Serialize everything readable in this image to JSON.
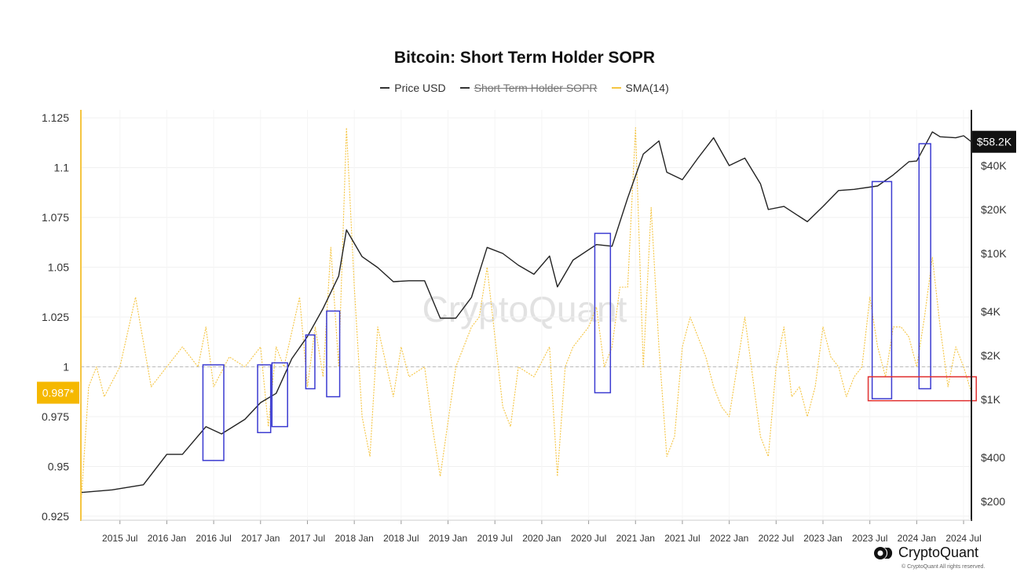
{
  "chart_data": {
    "type": "line",
    "title": "Bitcoin: Short Term Holder SOPR",
    "watermark": "CryptoQuant",
    "legend": [
      {
        "name": "Price USD",
        "color": "#333333",
        "enabled": true
      },
      {
        "name": "Short Term Holder SOPR",
        "color": "#333333",
        "enabled": false
      },
      {
        "name": "SMA(14)",
        "color": "#f5c542",
        "enabled": true
      }
    ],
    "x_ticks": [
      "2015 Jul",
      "2016 Jan",
      "2016 Jul",
      "2017 Jan",
      "2017 Jul",
      "2018 Jan",
      "2018 Jul",
      "2019 Jan",
      "2019 Jul",
      "2020 Jan",
      "2020 Jul",
      "2021 Jan",
      "2021 Jul",
      "2022 Jan",
      "2022 Jul",
      "2023 Jan",
      "2023 Jul",
      "2024 Jan",
      "2024 Jul"
    ],
    "x_range": [
      "2015-02",
      "2024-08"
    ],
    "y_left": {
      "ticks": [
        "1.125",
        "1.1",
        "1.075",
        "1.05",
        "1.025",
        "1",
        "0.975",
        "0.95",
        "0.925"
      ],
      "range": [
        0.923,
        1.129
      ],
      "reference": 1
    },
    "y_right": {
      "ticks": [
        "$40K",
        "$20K",
        "$10K",
        "$4K",
        "$2K",
        "$1K",
        "$400",
        "$200"
      ],
      "scale": "log"
    },
    "current_labels": {
      "sopr": "0.987*",
      "price": "$58.2K"
    },
    "series": [
      {
        "name": "Price USD",
        "axis": "right",
        "x": [
          "2015-02",
          "2015-06",
          "2015-10",
          "2016-01",
          "2016-03",
          "2016-06",
          "2016-08",
          "2016-11",
          "2017-01",
          "2017-03",
          "2017-05",
          "2017-07",
          "2017-09",
          "2017-11",
          "2017-12",
          "2018-02",
          "2018-04",
          "2018-06",
          "2018-08",
          "2018-10",
          "2018-12",
          "2019-02",
          "2019-04",
          "2019-06",
          "2019-08",
          "2019-10",
          "2019-12",
          "2020-02",
          "2020-03",
          "2020-05",
          "2020-08",
          "2020-10",
          "2020-12",
          "2021-01",
          "2021-02",
          "2021-04",
          "2021-05",
          "2021-07",
          "2021-09",
          "2021-11",
          "2022-01",
          "2022-03",
          "2022-05",
          "2022-06",
          "2022-08",
          "2022-11",
          "2023-01",
          "2023-03",
          "2023-05",
          "2023-08",
          "2023-10",
          "2023-12",
          "2024-01",
          "2024-03",
          "2024-04",
          "2024-06",
          "2024-07",
          "2024-08"
        ],
        "values": [
          230,
          240,
          260,
          420,
          420,
          650,
          580,
          730,
          950,
          1100,
          1900,
          2700,
          4200,
          7000,
          14500,
          9500,
          8000,
          6400,
          6500,
          6500,
          3600,
          3600,
          5000,
          11000,
          10000,
          8300,
          7200,
          9600,
          5900,
          9000,
          11500,
          11200,
          24000,
          34000,
          48000,
          59000,
          36000,
          32000,
          45000,
          62000,
          40000,
          45000,
          30000,
          20000,
          21000,
          16500,
          21000,
          27000,
          27500,
          29000,
          34500,
          42500,
          43000,
          68000,
          63000,
          62000,
          64000,
          58200
        ]
      },
      {
        "name": "SMA(14)",
        "axis": "left",
        "x": [
          "2015-02",
          "2015-03",
          "2015-04",
          "2015-05",
          "2015-07",
          "2015-09",
          "2015-11",
          "2016-01",
          "2016-03",
          "2016-05",
          "2016-06",
          "2016-07",
          "2016-09",
          "2016-11",
          "2017-01",
          "2017-02",
          "2017-03",
          "2017-04",
          "2017-06",
          "2017-07",
          "2017-08",
          "2017-09",
          "2017-10",
          "2017-11",
          "2017-12",
          "2018-01",
          "2018-02",
          "2018-03",
          "2018-04",
          "2018-06",
          "2018-07",
          "2018-08",
          "2018-10",
          "2018-11",
          "2018-12",
          "2019-02",
          "2019-04",
          "2019-05",
          "2019-06",
          "2019-08",
          "2019-09",
          "2019-10",
          "2019-12",
          "2020-02",
          "2020-03",
          "2020-04",
          "2020-05",
          "2020-07",
          "2020-08",
          "2020-09",
          "2020-10",
          "2020-11",
          "2020-12",
          "2021-01",
          "2021-02",
          "2021-03",
          "2021-04",
          "2021-05",
          "2021-06",
          "2021-07",
          "2021-08",
          "2021-10",
          "2021-11",
          "2021-12",
          "2022-01",
          "2022-02",
          "2022-03",
          "2022-05",
          "2022-06",
          "2022-07",
          "2022-08",
          "2022-09",
          "2022-10",
          "2022-11",
          "2022-12",
          "2023-01",
          "2023-02",
          "2023-03",
          "2023-04",
          "2023-05",
          "2023-06",
          "2023-07",
          "2023-08",
          "2023-09",
          "2023-10",
          "2023-11",
          "2023-12",
          "2024-01",
          "2024-02",
          "2024-03",
          "2024-04",
          "2024-05",
          "2024-06",
          "2024-07",
          "2024-08"
        ],
        "values": [
          0.93,
          0.99,
          1.0,
          0.985,
          1.0,
          1.035,
          0.99,
          1.0,
          1.01,
          1.0,
          1.02,
          0.99,
          1.005,
          1.0,
          1.01,
          0.97,
          1.01,
          1.0,
          1.035,
          0.99,
          1.02,
          0.995,
          1.06,
          1.0,
          1.12,
          1.04,
          0.975,
          0.955,
          1.02,
          0.985,
          1.01,
          0.995,
          1.0,
          0.97,
          0.945,
          1.0,
          1.02,
          1.025,
          1.05,
          0.98,
          0.97,
          1.0,
          0.995,
          1.01,
          0.945,
          1.0,
          1.01,
          1.02,
          1.03,
          1.0,
          1.01,
          1.04,
          1.04,
          1.12,
          1.0,
          1.08,
          1.01,
          0.955,
          0.965,
          1.01,
          1.025,
          1.005,
          0.99,
          0.98,
          0.975,
          1.0,
          1.025,
          0.965,
          0.955,
          1.0,
          1.02,
          0.985,
          0.99,
          0.975,
          0.99,
          1.02,
          1.005,
          1.0,
          0.985,
          0.995,
          1.0,
          1.035,
          1.01,
          0.995,
          1.02,
          1.02,
          1.015,
          1.0,
          1.025,
          1.055,
          1.02,
          0.99,
          1.01,
          1.0,
          0.987
        ]
      }
    ],
    "highlight_boxes": [
      {
        "color": "#3b3bd1",
        "x": [
          "2016-05-20",
          "2016-08-10"
        ],
        "y": [
          0.953,
          1.001
        ]
      },
      {
        "color": "#3b3bd1",
        "x": [
          "2016-12-20",
          "2017-02-10"
        ],
        "y": [
          0.967,
          1.001
        ]
      },
      {
        "color": "#3b3bd1",
        "x": [
          "2017-02-15",
          "2017-04-15"
        ],
        "y": [
          0.97,
          1.002
        ]
      },
      {
        "color": "#3b3bd1",
        "x": [
          "2017-06-25",
          "2017-07-30"
        ],
        "y": [
          0.989,
          1.016
        ]
      },
      {
        "color": "#3b3bd1",
        "x": [
          "2017-09-15",
          "2017-11-05"
        ],
        "y": [
          0.985,
          1.028
        ]
      },
      {
        "color": "#3b3bd1",
        "x": [
          "2020-07-25",
          "2020-09-25"
        ],
        "y": [
          0.987,
          1.067
        ]
      },
      {
        "color": "#3b3bd1",
        "x": [
          "2023-07-10",
          "2023-09-25"
        ],
        "y": [
          0.984,
          1.093
        ]
      },
      {
        "color": "#3b3bd1",
        "x": [
          "2024-01-10",
          "2024-02-25"
        ],
        "y": [
          0.989,
          1.112
        ]
      },
      {
        "color": "#e03030",
        "x": [
          "2023-06-25",
          "2024-08-20"
        ],
        "y": [
          0.983,
          0.995
        ]
      }
    ]
  },
  "branding": {
    "logo_text": "CryptoQuant",
    "copyright": "© CryptoQuant All rights reserved."
  }
}
